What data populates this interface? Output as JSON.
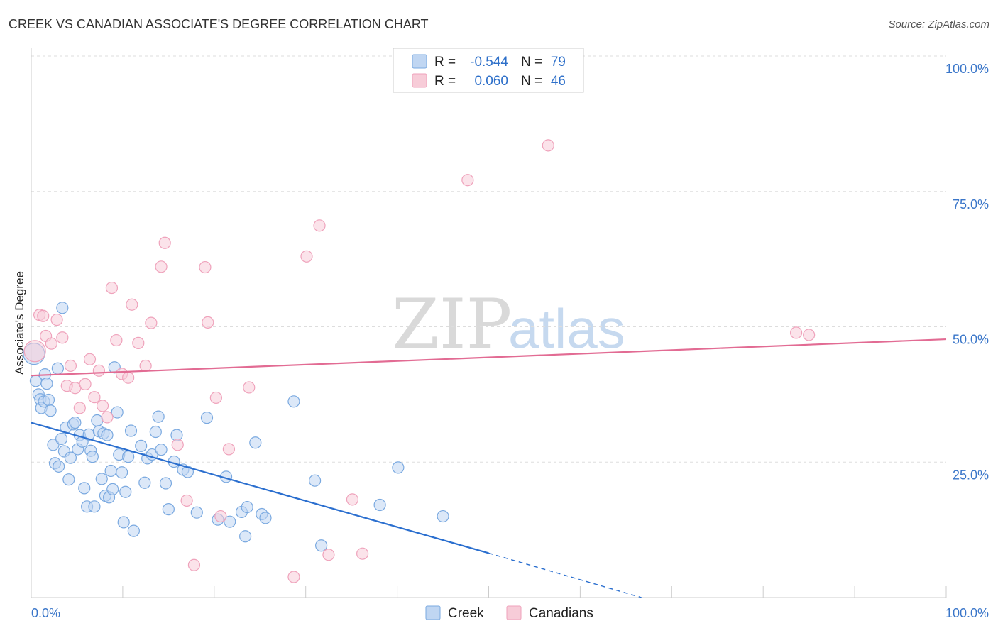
{
  "chart_data": {
    "type": "scatter",
    "title": "CREEK VS CANADIAN ASSOCIATE'S DEGREE CORRELATION CHART",
    "source": "Source: ZipAtlas.com",
    "ylabel": "Associate's Degree",
    "xlim": [
      0,
      100
    ],
    "ylim": [
      0,
      100
    ],
    "x_ticks": [
      "0.0%",
      "100.0%"
    ],
    "y_ticks": [
      {
        "value": 100,
        "label": "100.0%"
      },
      {
        "value": 75,
        "label": "75.0%"
      },
      {
        "value": 50,
        "label": "50.0%"
      },
      {
        "value": 25,
        "label": "25.0%"
      }
    ],
    "watermark": {
      "zip": "ZIP",
      "atlas": "atlas"
    },
    "legend_stats": [
      {
        "r_label": "R =",
        "r_value": "-0.544",
        "n_label": "N =",
        "n_value": "79"
      },
      {
        "r_label": "R =",
        "r_value": "0.060",
        "n_label": "N =",
        "n_value": "46"
      }
    ],
    "series": [
      {
        "name": "Creek",
        "color": "#7aa9e0",
        "fill": "#c0d6f2",
        "line_color": "#2b6fcf",
        "trend": {
          "x0": 0,
          "y0": 32.3,
          "x1": 50,
          "y1": 8.2,
          "dash_to_x": 66.7,
          "dash_to_y": 0
        },
        "points": [
          [
            0.3,
            45
          ],
          [
            0.5,
            40
          ],
          [
            0.8,
            37.5
          ],
          [
            1,
            36.6
          ],
          [
            1.1,
            35
          ],
          [
            1.4,
            36.2
          ],
          [
            1.5,
            41.2
          ],
          [
            1.7,
            39.5
          ],
          [
            1.9,
            36.5
          ],
          [
            2.1,
            34.5
          ],
          [
            2.4,
            28.2
          ],
          [
            2.6,
            24.8
          ],
          [
            2.9,
            42.3
          ],
          [
            3,
            24.2
          ],
          [
            3.3,
            29.3
          ],
          [
            3.4,
            53.5
          ],
          [
            3.6,
            27
          ],
          [
            3.8,
            31.4
          ],
          [
            4.1,
            21.8
          ],
          [
            4.3,
            25.8
          ],
          [
            4.6,
            32
          ],
          [
            4.8,
            32.3
          ],
          [
            5.1,
            27.4
          ],
          [
            5.3,
            30
          ],
          [
            5.6,
            28.8
          ],
          [
            5.8,
            20.2
          ],
          [
            6.1,
            16.8
          ],
          [
            6.3,
            30.1
          ],
          [
            6.5,
            27.1
          ],
          [
            6.7,
            26
          ],
          [
            6.9,
            16.8
          ],
          [
            7.2,
            32.7
          ],
          [
            7.4,
            30.7
          ],
          [
            7.7,
            21.9
          ],
          [
            7.9,
            30.3
          ],
          [
            8.1,
            18.8
          ],
          [
            8.3,
            30
          ],
          [
            8.5,
            18.5
          ],
          [
            8.7,
            23.4
          ],
          [
            8.9,
            20
          ],
          [
            9.1,
            42.5
          ],
          [
            9.4,
            34.2
          ],
          [
            9.6,
            26.4
          ],
          [
            9.9,
            23.1
          ],
          [
            10.1,
            13.9
          ],
          [
            10.3,
            19.5
          ],
          [
            10.6,
            26
          ],
          [
            10.9,
            30.8
          ],
          [
            11.2,
            12.3
          ],
          [
            12,
            28
          ],
          [
            12.4,
            21.2
          ],
          [
            12.7,
            25.7
          ],
          [
            13.2,
            26.4
          ],
          [
            13.6,
            30.6
          ],
          [
            13.9,
            33.4
          ],
          [
            14.2,
            27.3
          ],
          [
            14.7,
            21.1
          ],
          [
            15,
            16.3
          ],
          [
            15.6,
            25.1
          ],
          [
            15.9,
            30
          ],
          [
            16.6,
            23.6
          ],
          [
            17.1,
            23.2
          ],
          [
            18.1,
            15.7
          ],
          [
            19.2,
            33.2
          ],
          [
            20.4,
            14.4
          ],
          [
            21.3,
            22.3
          ],
          [
            21.7,
            14
          ],
          [
            23,
            15.8
          ],
          [
            23.4,
            11.3
          ],
          [
            23.6,
            16.7
          ],
          [
            24.5,
            28.6
          ],
          [
            25.2,
            15.4
          ],
          [
            25.6,
            14.7
          ],
          [
            28.7,
            36.2
          ],
          [
            31,
            21.6
          ],
          [
            31.7,
            9.6
          ],
          [
            38.1,
            17.1
          ],
          [
            40.1,
            24
          ],
          [
            45,
            15
          ]
        ]
      },
      {
        "name": "Canadians",
        "color": "#efa2bb",
        "fill": "#f7ccd8",
        "line_color": "#e26b93",
        "trend": {
          "x0": 0,
          "y0": 41,
          "x1": 100,
          "y1": 47.7
        },
        "points": [
          [
            0.4,
            45.5
          ],
          [
            0.9,
            52.2
          ],
          [
            1.3,
            52
          ],
          [
            1.6,
            48.3
          ],
          [
            2.2,
            46.9
          ],
          [
            2.8,
            51.3
          ],
          [
            3.4,
            48
          ],
          [
            3.9,
            39.1
          ],
          [
            4.3,
            42.8
          ],
          [
            4.8,
            38.7
          ],
          [
            5.3,
            35
          ],
          [
            5.9,
            39.4
          ],
          [
            6.4,
            44
          ],
          [
            6.9,
            37
          ],
          [
            7.4,
            41.9
          ],
          [
            7.8,
            35.4
          ],
          [
            8.3,
            33.3
          ],
          [
            8.8,
            57.2
          ],
          [
            9.3,
            47.5
          ],
          [
            9.9,
            41.3
          ],
          [
            10.6,
            40.6
          ],
          [
            11,
            54.1
          ],
          [
            11.7,
            47
          ],
          [
            12.5,
            42.8
          ],
          [
            13.1,
            50.7
          ],
          [
            14.2,
            61.1
          ],
          [
            14.6,
            65.5
          ],
          [
            16,
            28.2
          ],
          [
            17,
            17.9
          ],
          [
            17.8,
            6
          ],
          [
            19,
            61
          ],
          [
            19.3,
            50.8
          ],
          [
            20.2,
            36.9
          ],
          [
            20.7,
            15
          ],
          [
            21.6,
            27.4
          ],
          [
            23.8,
            38.8
          ],
          [
            28.7,
            3.8
          ],
          [
            30.1,
            63
          ],
          [
            31.5,
            68.7
          ],
          [
            32.5,
            7.9
          ],
          [
            35.1,
            18.1
          ],
          [
            36.2,
            8.1
          ],
          [
            47.7,
            77.1
          ],
          [
            56.5,
            83.5
          ],
          [
            83.6,
            48.9
          ],
          [
            85,
            48.5
          ]
        ]
      }
    ]
  }
}
